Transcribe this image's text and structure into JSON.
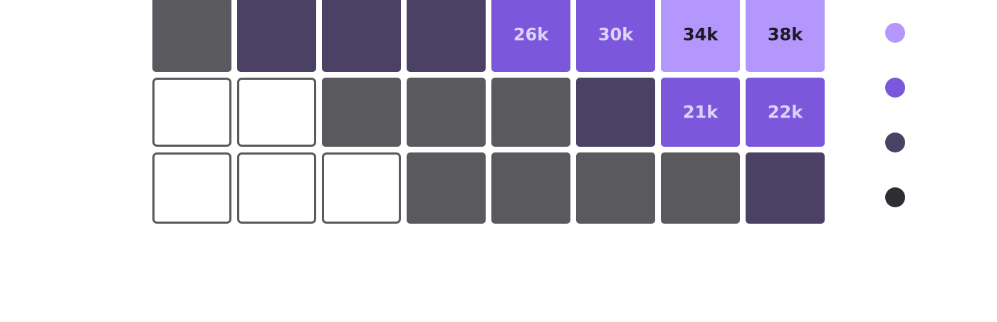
{
  "chart_data": {
    "type": "heatmap",
    "title": "",
    "xlabel": "",
    "ylabel": "",
    "rows": [
      {
        "cells": [
          {
            "level": 1,
            "label": ""
          },
          {
            "level": 2,
            "label": ""
          },
          {
            "level": 2,
            "label": ""
          },
          {
            "level": 2,
            "label": ""
          },
          {
            "level": 3,
            "label": "26k"
          },
          {
            "level": 3,
            "label": "30k"
          },
          {
            "level": 4,
            "label": "34k"
          },
          {
            "level": 4,
            "label": "38k"
          }
        ]
      },
      {
        "cells": [
          {
            "level": 0,
            "label": ""
          },
          {
            "level": 0,
            "label": ""
          },
          {
            "level": 1,
            "label": ""
          },
          {
            "level": 1,
            "label": ""
          },
          {
            "level": 1,
            "label": ""
          },
          {
            "level": 2,
            "label": ""
          },
          {
            "level": 3,
            "label": "21k"
          },
          {
            "level": 3,
            "label": "22k"
          }
        ]
      },
      {
        "cells": [
          {
            "level": 0,
            "label": ""
          },
          {
            "level": 0,
            "label": ""
          },
          {
            "level": 0,
            "label": ""
          },
          {
            "level": 1,
            "label": ""
          },
          {
            "level": 1,
            "label": ""
          },
          {
            "level": 1,
            "label": ""
          },
          {
            "level": 1,
            "label": ""
          },
          {
            "level": 2,
            "label": ""
          }
        ]
      }
    ],
    "level_colors": {
      "0": "#ffffff",
      "1": "#5a595e",
      "2": "#4a4165",
      "3": "#7b57dc",
      "4": "#b497fd"
    },
    "label_colors": {
      "3": "#ddd3f8",
      "4": "#1d1a26"
    },
    "empty_border_color": "#5a595e",
    "legend": {
      "placement": "right",
      "entries": [
        {
          "color": "#b497fd"
        },
        {
          "color": "#7b57dc"
        },
        {
          "color": "#4a4165"
        },
        {
          "color": "#2e2e32"
        }
      ]
    }
  }
}
